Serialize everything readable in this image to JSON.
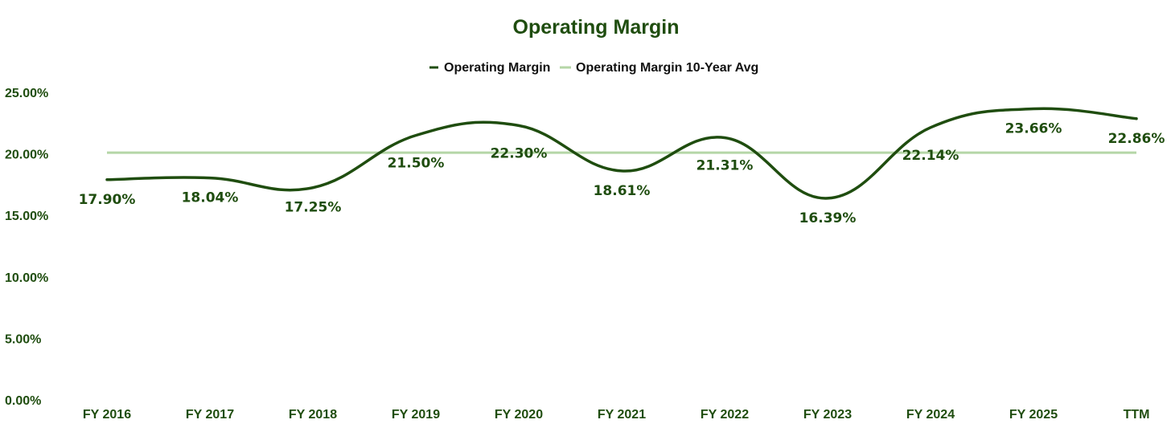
{
  "chart_data": {
    "type": "line",
    "title": "Operating Margin",
    "categories": [
      "FY 2016",
      "FY 2017",
      "FY 2018",
      "FY 2019",
      "FY 2020",
      "FY 2021",
      "FY 2022",
      "FY 2023",
      "FY 2024",
      "FY 2025",
      "TTM"
    ],
    "series": [
      {
        "name": "Operating Margin",
        "values": [
          17.9,
          18.04,
          17.25,
          21.5,
          22.3,
          18.61,
          21.31,
          16.39,
          22.14,
          23.66,
          22.86
        ],
        "data_labels": [
          "17.90%",
          "18.04%",
          "17.25%",
          "21.50%",
          "22.30%",
          "18.61%",
          "21.31%",
          "16.39%",
          "22.14%",
          "23.66%",
          "22.86%"
        ],
        "color": "#1f4d0f",
        "smooth": true
      },
      {
        "name": "Operating Margin 10-Year Avg",
        "values": [
          20.1,
          20.1,
          20.1,
          20.1,
          20.1,
          20.1,
          20.1,
          20.1,
          20.1,
          20.1,
          20.1
        ],
        "color": "#b5d6a7"
      }
    ],
    "y_ticks": [
      "0.00%",
      "5.00%",
      "10.00%",
      "15.00%",
      "20.00%",
      "25.00%"
    ],
    "y_tick_values": [
      0,
      5,
      10,
      15,
      20,
      25
    ],
    "ylim": [
      0,
      25
    ],
    "xlabel": "",
    "ylabel": "",
    "legend_position": "top-center",
    "grid": false,
    "title_color": "#1f4d0f",
    "axis_label_color": "#1f4d0f"
  }
}
